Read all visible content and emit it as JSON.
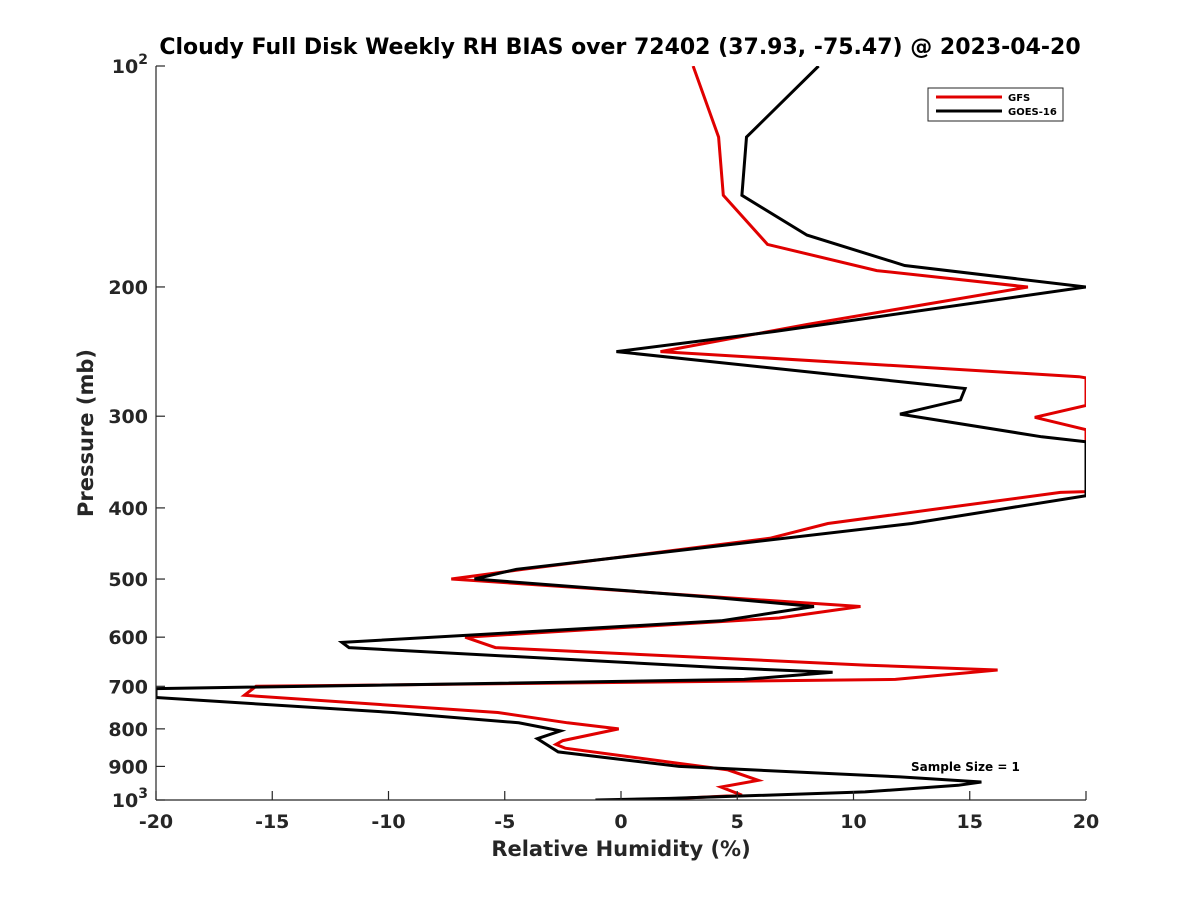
{
  "chart_data": {
    "type": "line",
    "title": "Cloudy Full Disk Weekly RH BIAS over 72402 (37.93, -75.47) @ 2023-04-20",
    "xlabel": "Relative Humidity (%)",
    "ylabel": "Pressure (mb)",
    "xlim": [
      -20,
      20
    ],
    "ylim": [
      100,
      1000
    ],
    "y_scale": "log",
    "y_reversed": true,
    "grid": false,
    "legend_position": "top-right",
    "x_ticks": [
      -20,
      -15,
      -10,
      -5,
      0,
      5,
      10,
      15,
      20
    ],
    "x_tick_labels": [
      "-20",
      "-15",
      "-10",
      "-5",
      "0",
      "5",
      "10",
      "15",
      "20"
    ],
    "y_ticks": [
      100,
      200,
      300,
      400,
      500,
      600,
      700,
      800,
      900,
      1000
    ],
    "y_tick_labels": [
      {
        "base": "10",
        "exp": "2"
      },
      {
        "base": "200",
        "exp": ""
      },
      {
        "base": "300",
        "exp": ""
      },
      {
        "base": "400",
        "exp": ""
      },
      {
        "base": "500",
        "exp": ""
      },
      {
        "base": "600",
        "exp": ""
      },
      {
        "base": "700",
        "exp": ""
      },
      {
        "base": "800",
        "exp": ""
      },
      {
        "base": "900",
        "exp": ""
      },
      {
        "base": "10",
        "exp": "3"
      }
    ],
    "annotation": "Sample Size = 1",
    "series": [
      {
        "name": "GFS",
        "color": "#e00000",
        "points": [
          [
            3.1,
            100
          ],
          [
            4.2,
            125
          ],
          [
            4.4,
            150
          ],
          [
            6.3,
            175
          ],
          [
            11,
            190
          ],
          [
            17.5,
            200
          ],
          [
            8,
            225
          ],
          [
            1.7,
            245
          ],
          [
            19.7,
            265
          ],
          [
            20,
            266
          ],
          [
            20,
            290
          ],
          [
            17.8,
            301
          ],
          [
            20,
            313
          ],
          [
            20,
            380
          ],
          [
            18.9,
            381
          ],
          [
            8.9,
            420
          ],
          [
            6.4,
            440
          ],
          [
            -4.2,
            485
          ],
          [
            -7.3,
            500
          ],
          [
            4.5,
            530
          ],
          [
            10.3,
            545
          ],
          [
            6.8,
            565
          ],
          [
            -6.7,
            600
          ],
          [
            -5.4,
            620
          ],
          [
            10.5,
            655
          ],
          [
            16.2,
            665
          ],
          [
            11.8,
            685
          ],
          [
            -15.7,
            700
          ],
          [
            -16.2,
            720
          ],
          [
            -5.3,
            760
          ],
          [
            -2.3,
            785
          ],
          [
            -0.1,
            800
          ],
          [
            -2.5,
            830
          ],
          [
            -2.8,
            840
          ],
          [
            -2.4,
            850
          ],
          [
            4.6,
            910
          ],
          [
            5.9,
            940
          ],
          [
            4.3,
            960
          ],
          [
            5.2,
            985
          ],
          [
            1.1,
            1000
          ]
        ]
      },
      {
        "name": "GOES-16",
        "color": "#000000",
        "points": [
          [
            8.5,
            100
          ],
          [
            5.4,
            125
          ],
          [
            5.2,
            150
          ],
          [
            8,
            170
          ],
          [
            12.2,
            187
          ],
          [
            20,
            200
          ],
          [
            6.6,
            230
          ],
          [
            -0.2,
            245
          ],
          [
            14.8,
            275
          ],
          [
            14.6,
            285
          ],
          [
            12,
            298
          ],
          [
            18.1,
            320
          ],
          [
            20,
            325
          ],
          [
            20,
            385
          ],
          [
            12.5,
            420
          ],
          [
            -4.5,
            485
          ],
          [
            -6.3,
            500
          ],
          [
            4.1,
            530
          ],
          [
            8.3,
            545
          ],
          [
            4.3,
            570
          ],
          [
            -12,
            610
          ],
          [
            -11.7,
            620
          ],
          [
            4.2,
            660
          ],
          [
            9.1,
            670
          ],
          [
            5.3,
            685
          ],
          [
            -20,
            705
          ],
          [
            -20,
            725
          ],
          [
            -9.8,
            760
          ],
          [
            -4.4,
            785
          ],
          [
            -2.6,
            805
          ],
          [
            -3.6,
            825
          ],
          [
            -2.7,
            860
          ],
          [
            2.5,
            900
          ],
          [
            12,
            930
          ],
          [
            15.5,
            945
          ],
          [
            14.5,
            955
          ],
          [
            10.5,
            975
          ],
          [
            2.1,
            995
          ],
          [
            -1.1,
            1000
          ]
        ]
      }
    ]
  }
}
